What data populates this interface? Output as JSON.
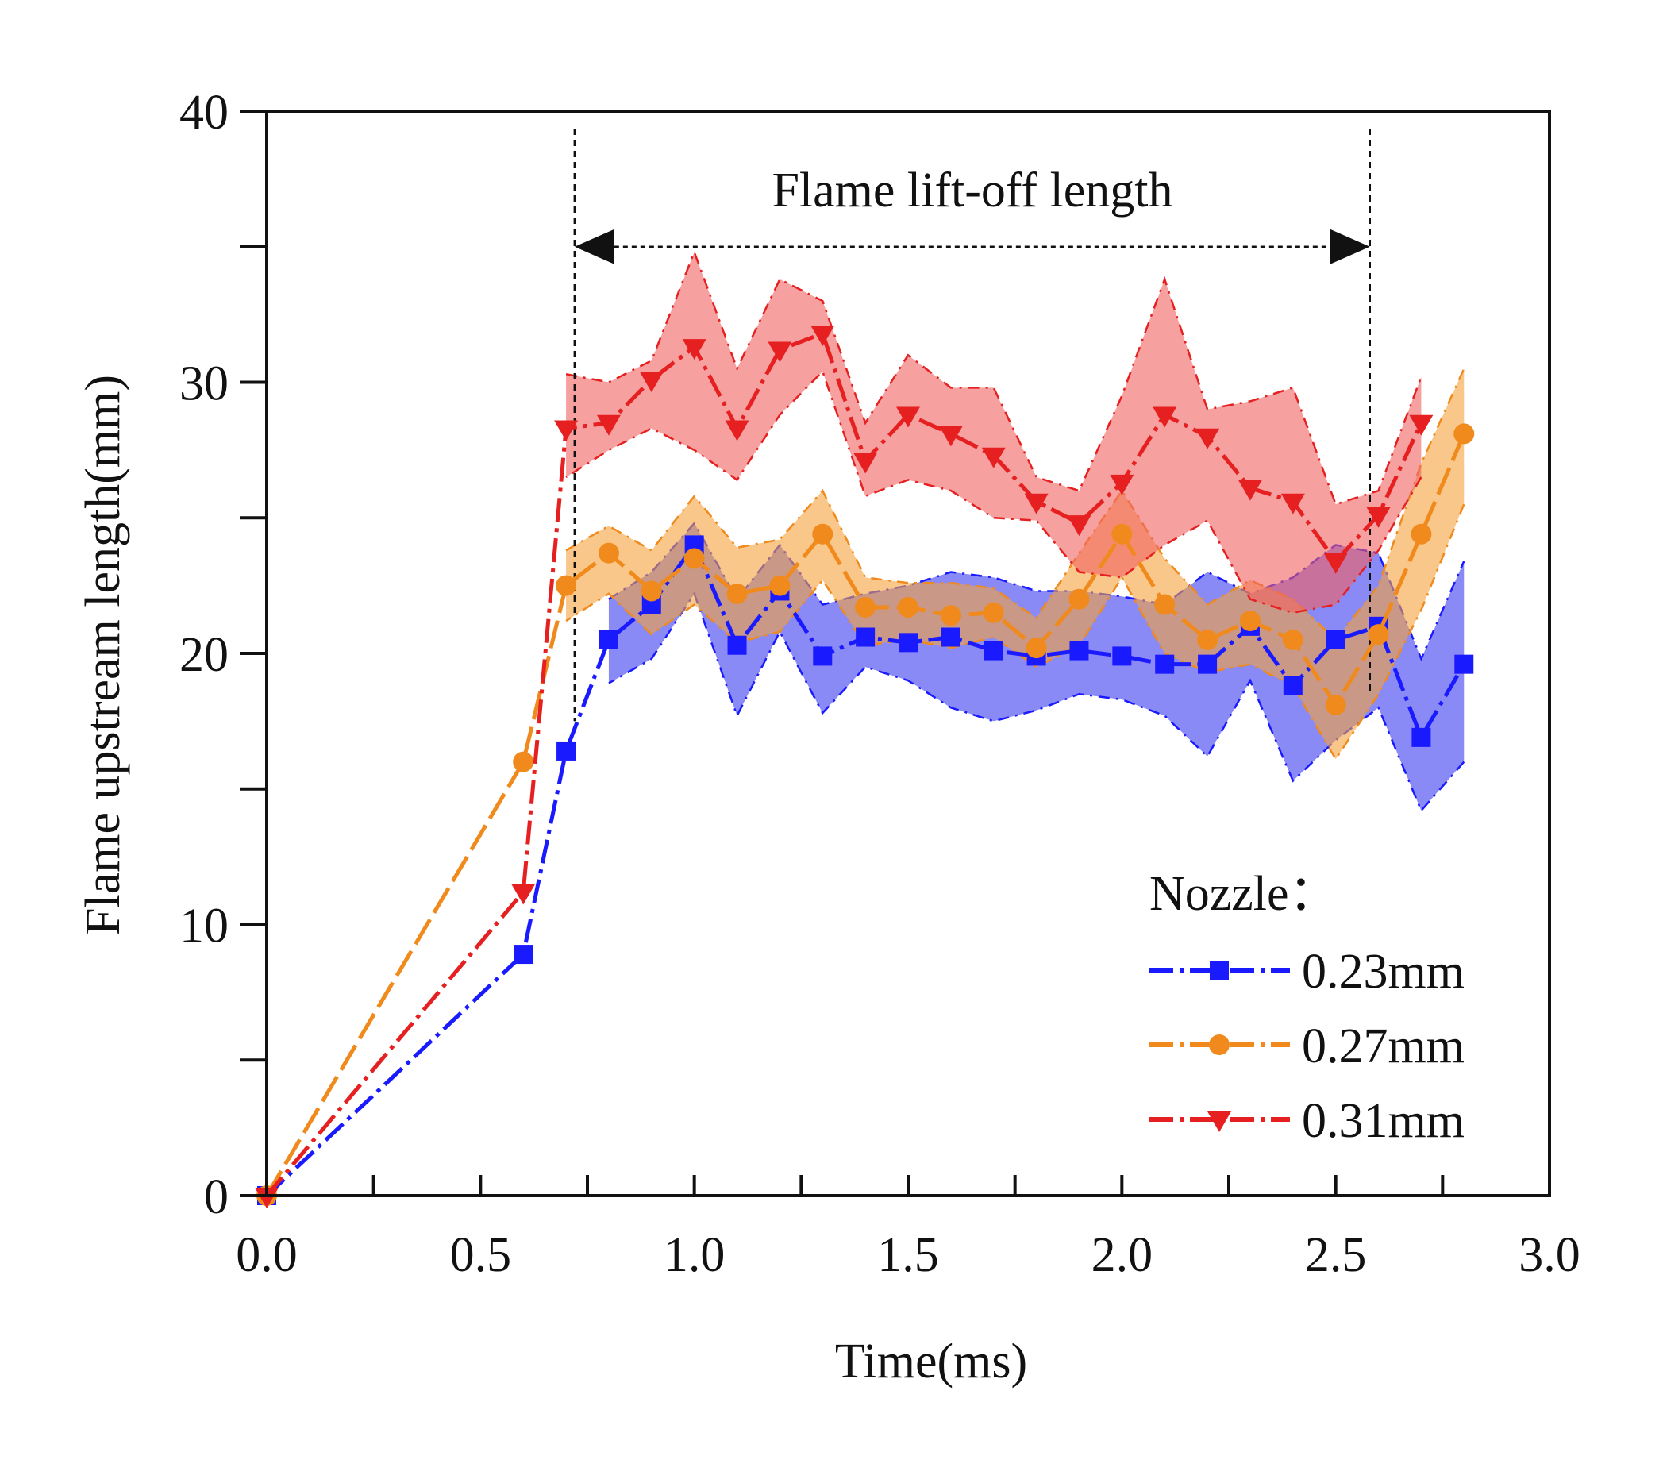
{
  "chart_data": {
    "type": "line",
    "title": "",
    "xlabel": "Time(ms)",
    "ylabel": "Flame upstream length(mm)",
    "xlim": [
      0,
      3.0
    ],
    "ylim": [
      0,
      40
    ],
    "xticks": [
      0.0,
      0.5,
      1.0,
      1.5,
      2.0,
      2.5,
      3.0
    ],
    "xtick_labels": [
      "0.0",
      "0.5",
      "1.0",
      "1.5",
      "2.0",
      "2.5",
      "3.0"
    ],
    "yticks": [
      0,
      10,
      20,
      30,
      40
    ],
    "ytick_labels": [
      "0",
      "10",
      "20",
      "30",
      "40"
    ],
    "legend": {
      "title": "Nozzle：",
      "position": "lower-right"
    },
    "annotation": {
      "text": "Flame lift-off length",
      "x_start": 0.72,
      "x_end": 2.58,
      "arrow_y": 35
    },
    "series": [
      {
        "name": "0.23mm",
        "color": "#1a1aff",
        "fill": "#3c3cf0",
        "marker": "square",
        "x": [
          0,
          0.6,
          0.7,
          0.8,
          0.9,
          1.0,
          1.1,
          1.2,
          1.3,
          1.4,
          1.5,
          1.6,
          1.7,
          1.8,
          1.9,
          2.0,
          2.1,
          2.2,
          2.3,
          2.4,
          2.5,
          2.6,
          2.7,
          2.8
        ],
        "y": [
          0,
          8.9,
          16.4,
          20.5,
          21.8,
          24.0,
          20.3,
          22.3,
          19.9,
          20.6,
          20.4,
          20.6,
          20.1,
          19.9,
          20.1,
          19.9,
          19.6,
          19.6,
          21.0,
          18.8,
          20.5,
          21.0,
          16.9,
          19.6
        ],
        "upper": [
          null,
          null,
          null,
          22.0,
          23.0,
          24.8,
          22.0,
          24.0,
          21.8,
          22.2,
          22.5,
          23.0,
          22.8,
          22.3,
          22.3,
          22.1,
          21.8,
          23.0,
          22.2,
          22.8,
          24.0,
          23.7,
          19.8,
          23.4
        ],
        "lower": [
          null,
          null,
          null,
          18.9,
          19.8,
          22.2,
          17.7,
          20.8,
          17.8,
          19.5,
          19.0,
          18.0,
          17.5,
          17.9,
          18.5,
          18.3,
          17.7,
          16.2,
          19.0,
          15.3,
          16.8,
          18.0,
          14.2,
          16.0
        ]
      },
      {
        "name": "0.27mm",
        "color": "#f08a1c",
        "fill": "#f5a23c",
        "marker": "circle",
        "x": [
          0,
          0.6,
          0.7,
          0.8,
          0.9,
          1.0,
          1.1,
          1.2,
          1.3,
          1.4,
          1.5,
          1.6,
          1.7,
          1.8,
          1.9,
          2.0,
          2.1,
          2.2,
          2.3,
          2.4,
          2.5,
          2.6,
          2.7,
          2.8
        ],
        "y": [
          0,
          16.0,
          22.5,
          23.7,
          22.3,
          23.5,
          22.2,
          22.5,
          24.4,
          21.7,
          21.7,
          21.4,
          21.5,
          20.2,
          22.0,
          24.4,
          21.8,
          20.5,
          21.2,
          20.5,
          18.1,
          20.7,
          24.4,
          28.1
        ],
        "upper": [
          null,
          null,
          23.8,
          24.7,
          23.8,
          25.8,
          23.9,
          24.2,
          26.0,
          22.8,
          22.6,
          22.6,
          22.4,
          21.3,
          23.7,
          26.0,
          23.5,
          21.8,
          22.7,
          22.0,
          20.5,
          22.5,
          27.0,
          30.5
        ],
        "lower": [
          null,
          null,
          21.2,
          22.2,
          20.7,
          21.8,
          20.4,
          20.8,
          22.7,
          20.3,
          20.5,
          20.2,
          20.6,
          19.5,
          20.3,
          22.8,
          20.0,
          19.3,
          19.6,
          18.8,
          16.1,
          18.5,
          21.6,
          25.5
        ]
      },
      {
        "name": "0.31mm",
        "color": "#e62020",
        "fill": "#f06060",
        "marker": "triangle-down",
        "x": [
          0,
          0.6,
          0.7,
          0.8,
          0.9,
          1.0,
          1.1,
          1.2,
          1.3,
          1.4,
          1.5,
          1.6,
          1.7,
          1.8,
          1.9,
          2.0,
          2.1,
          2.2,
          2.3,
          2.4,
          2.5,
          2.6,
          2.7
        ],
        "y": [
          0,
          11.2,
          28.3,
          28.5,
          30.1,
          31.3,
          28.3,
          31.2,
          31.8,
          27.1,
          28.8,
          28.1,
          27.3,
          25.6,
          24.8,
          26.3,
          28.8,
          28.0,
          26.1,
          25.6,
          23.4,
          25.1,
          28.5
        ],
        "upper": [
          null,
          null,
          30.3,
          30.0,
          30.8,
          34.8,
          30.5,
          33.8,
          33.0,
          28.5,
          31.0,
          29.8,
          29.8,
          26.5,
          26.0,
          29.5,
          33.8,
          29.0,
          29.3,
          29.8,
          25.5,
          26.0,
          30.2
        ],
        "lower": [
          null,
          null,
          26.5,
          27.5,
          28.3,
          27.5,
          26.4,
          28.8,
          30.4,
          25.8,
          26.4,
          26.0,
          25.0,
          24.9,
          23.0,
          22.8,
          24.0,
          24.9,
          22.0,
          21.5,
          21.8,
          23.8,
          26.5
        ]
      }
    ]
  }
}
